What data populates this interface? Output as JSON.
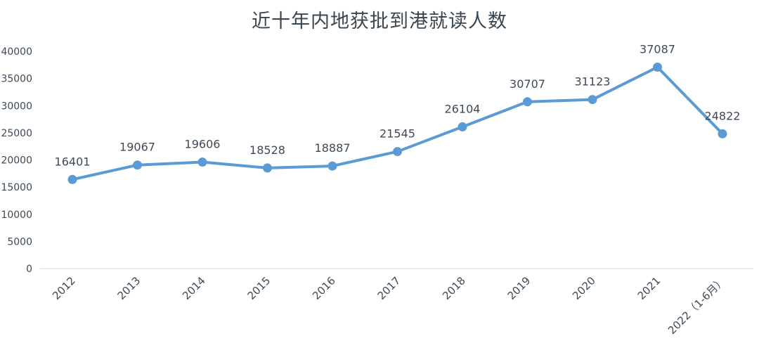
{
  "chart_data": {
    "type": "line",
    "title": "近十年内地获批到港就读人数",
    "xlabel": "",
    "ylabel": "",
    "categories": [
      "2012",
      "2013",
      "2014",
      "2015",
      "2016",
      "2017",
      "2018",
      "2019",
      "2020",
      "2021",
      "2022（1-6月）"
    ],
    "series": [
      {
        "values": [
          16401,
          19067,
          19606,
          18528,
          18887,
          21545,
          26104,
          30707,
          31123,
          37087,
          24822
        ]
      }
    ],
    "data_labels": [
      "16401",
      "19067",
      "19606",
      "18528",
      "18887",
      "21545",
      "26104",
      "30707",
      "31123",
      "37087",
      "24822"
    ],
    "ylim": [
      0,
      40000
    ],
    "yticks": [
      0,
      5000,
      10000,
      15000,
      20000,
      25000,
      30000,
      35000,
      40000
    ],
    "grid": false,
    "legend": "none",
    "line_color": "#5b9bd5",
    "text_color": "#3d4a56"
  }
}
